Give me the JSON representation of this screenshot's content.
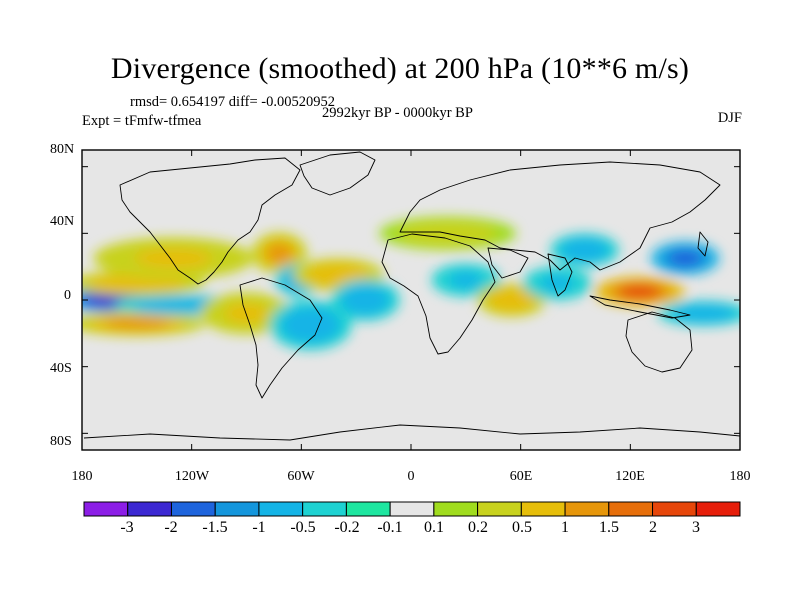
{
  "title": "Divergence (smoothed) at 200 hPa (10**6 m/s)",
  "stats_line": "rmsd= 0.654197 diff= -0.00520952",
  "experiment_label": "Expt = tFmfw-tfmea",
  "period_label": "2992kyr BP - 0000kyr BP",
  "season_label": "DJF",
  "chart_data": {
    "type": "heatmap",
    "variable": "Divergence (smoothed) at 200 hPa",
    "units": "10**6 m/s",
    "projection": "cylindrical equidistant",
    "lon_range": [
      -180,
      180
    ],
    "lat_range": [
      -90,
      90
    ],
    "x_tick_labels": [
      "180",
      "120W",
      "60W",
      "0",
      "60E",
      "120E",
      "180"
    ],
    "x_tick_values": [
      -180,
      -120,
      -60,
      0,
      60,
      120,
      180
    ],
    "y_tick_labels": [
      "80N",
      "40N",
      "0",
      "40S",
      "80S"
    ],
    "y_tick_values": [
      80,
      40,
      0,
      -40,
      -80
    ],
    "colorbar_levels": [
      "-3",
      "-2",
      "-1.5",
      "-1",
      "-0.5",
      "-0.2",
      "-0.1",
      "0.1",
      "0.2",
      "0.5",
      "1",
      "1.5",
      "2",
      "3"
    ],
    "colorbar_colors": [
      "#8c1ee6",
      "#3c28d2",
      "#1e64dc",
      "#1496dc",
      "#14b4e6",
      "#1ed2d2",
      "#1ee6a0",
      "#e6e6e6",
      "#a0dc1e",
      "#c8d21e",
      "#e6be0a",
      "#e6960a",
      "#e66e0a",
      "#e6460a",
      "#e61e0a"
    ],
    "anomaly_blobs": [
      {
        "lon": -165,
        "lat": 0,
        "value": -2.2,
        "spread_lon": 20,
        "spread_lat": 6
      },
      {
        "lon": -150,
        "lat": 10,
        "value": 0.8,
        "spread_lon": 30,
        "spread_lat": 6
      },
      {
        "lon": -150,
        "lat": -14,
        "value": 1.0,
        "spread_lon": 30,
        "spread_lat": 6
      },
      {
        "lon": -130,
        "lat": 25,
        "value": 0.6,
        "spread_lon": 35,
        "spread_lat": 10
      },
      {
        "lon": -125,
        "lat": -3,
        "value": -1.0,
        "spread_lon": 30,
        "spread_lat": 5
      },
      {
        "lon": -90,
        "lat": -8,
        "value": 0.7,
        "spread_lon": 20,
        "spread_lat": 10
      },
      {
        "lon": -72,
        "lat": 28,
        "value": 1.0,
        "spread_lon": 12,
        "spread_lat": 10
      },
      {
        "lon": -62,
        "lat": 12,
        "value": -0.8,
        "spread_lon": 10,
        "spread_lat": 8
      },
      {
        "lon": -55,
        "lat": -15,
        "value": -0.8,
        "spread_lon": 18,
        "spread_lat": 12
      },
      {
        "lon": -40,
        "lat": 15,
        "value": 0.8,
        "spread_lon": 20,
        "spread_lat": 8
      },
      {
        "lon": -25,
        "lat": 0,
        "value": -0.9,
        "spread_lon": 15,
        "spread_lat": 10
      },
      {
        "lon": 20,
        "lat": 40,
        "value": 0.3,
        "spread_lon": 30,
        "spread_lat": 8
      },
      {
        "lon": 30,
        "lat": 12,
        "value": -0.6,
        "spread_lon": 15,
        "spread_lat": 8
      },
      {
        "lon": 55,
        "lat": 0,
        "value": 0.8,
        "spread_lon": 15,
        "spread_lat": 8
      },
      {
        "lon": 80,
        "lat": 10,
        "value": -0.6,
        "spread_lon": 15,
        "spread_lat": 8
      },
      {
        "lon": 95,
        "lat": 30,
        "value": -0.8,
        "spread_lon": 15,
        "spread_lat": 8
      },
      {
        "lon": 125,
        "lat": 5,
        "value": 2.0,
        "spread_lon": 20,
        "spread_lat": 7
      },
      {
        "lon": 150,
        "lat": 25,
        "value": -1.6,
        "spread_lon": 15,
        "spread_lat": 8
      },
      {
        "lon": 160,
        "lat": -8,
        "value": -0.9,
        "spread_lon": 20,
        "spread_lat": 6
      }
    ]
  }
}
